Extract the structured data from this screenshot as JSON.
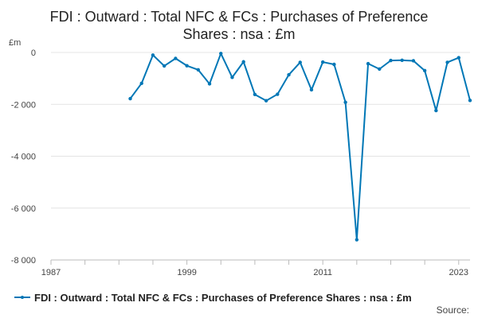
{
  "chart_data": {
    "type": "line",
    "title_lines": [
      "FDI : Outward : Total NFC & FCs : Purchases of Preference",
      "Shares : nsa : £m"
    ],
    "y_unit": "£m",
    "source_label": "Source:",
    "series_color": "#0077b6",
    "grid": true,
    "legend_position": "bottom",
    "x_range": [
      1987,
      2024
    ],
    "x_tick_labels": [
      "1987",
      "1999",
      "2011",
      "2023"
    ],
    "x_tick_values": [
      1987,
      1999,
      2011,
      2023
    ],
    "ylim": [
      -8000,
      0
    ],
    "y_tick_values": [
      0,
      -2000,
      -4000,
      -6000,
      -8000
    ],
    "y_tick_labels": [
      "0",
      "-2 000",
      "-4 000",
      "-6 000",
      "-8 000"
    ],
    "series": [
      {
        "name": "FDI : Outward : Total NFC & FCs : Purchases of Preference Shares : nsa : £m",
        "x": [
          1994,
          1995,
          1996,
          1997,
          1998,
          1999,
          2000,
          2001,
          2002,
          2003,
          2004,
          2005,
          2006,
          2007,
          2008,
          2009,
          2010,
          2011,
          2012,
          2013,
          2014,
          2015,
          2016,
          2017,
          2018,
          2019,
          2020,
          2021,
          2022,
          2023,
          2024
        ],
        "values": [
          -1780,
          -1190,
          -100,
          -520,
          -230,
          -510,
          -670,
          -1210,
          -40,
          -960,
          -360,
          -1620,
          -1860,
          -1610,
          -860,
          -380,
          -1440,
          -370,
          -460,
          -1920,
          -7220,
          -430,
          -640,
          -310,
          -300,
          -320,
          -700,
          -2240,
          -380,
          -200,
          -1850
        ]
      }
    ]
  }
}
